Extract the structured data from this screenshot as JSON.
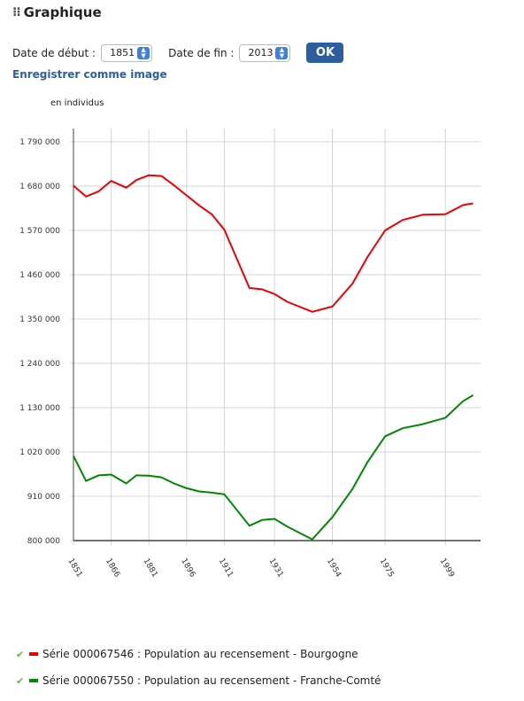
{
  "header": {
    "title": "Graphique",
    "icon": "drag-handle-icon"
  },
  "controls": {
    "start_label": "Date de début :",
    "start_value": "1851",
    "end_label": "Date de fin :",
    "end_value": "2013",
    "ok_label": "OK"
  },
  "save_link": "Enregistrer comme image",
  "chart_data": {
    "type": "line",
    "ylabel": "en individus",
    "ylim": [
      800000,
      1790000
    ],
    "yticks": [
      800000,
      910000,
      1020000,
      1130000,
      1240000,
      1350000,
      1460000,
      1570000,
      1680000,
      1790000
    ],
    "ytick_labels": [
      "800 000",
      "910 000",
      "1 020 000",
      "1 130 000",
      "1 240 000",
      "1 350 000",
      "1 460 000",
      "1 570 000",
      "1 680 000",
      "1 790 000"
    ],
    "xlim": [
      1851,
      2013
    ],
    "xticks": [
      1851,
      1866,
      1881,
      1896,
      1911,
      1931,
      1954,
      1975,
      1999
    ],
    "xtick_labels": [
      "1851",
      "1866",
      "1881",
      "1896",
      "1911",
      "1931",
      "1954",
      "1975",
      "1999"
    ],
    "grid": true,
    "series": [
      {
        "name": "Série 000067546 : Population au recensement - Bourgogne",
        "color": "#ee0000",
        "x": [
          1851,
          1856,
          1861,
          1866,
          1872,
          1876,
          1881,
          1886,
          1891,
          1896,
          1901,
          1906,
          1911,
          1921,
          1926,
          1931,
          1936,
          1946,
          1954,
          1962,
          1968,
          1975,
          1982,
          1990,
          1999,
          2006,
          2010
        ],
        "y": [
          1681000,
          1654000,
          1667000,
          1693000,
          1676000,
          1695000,
          1707000,
          1705000,
          1682000,
          1657000,
          1632000,
          1610000,
          1572000,
          1427000,
          1424000,
          1412000,
          1393000,
          1368000,
          1381000,
          1438000,
          1504000,
          1570000,
          1596000,
          1609000,
          1610000,
          1633000,
          1637000
        ]
      },
      {
        "name": "Série 000067550 : Population au recensement - Franche-Comté",
        "color": "#008800",
        "x": [
          1851,
          1856,
          1861,
          1866,
          1872,
          1876,
          1881,
          1886,
          1891,
          1896,
          1901,
          1906,
          1911,
          1921,
          1926,
          1931,
          1936,
          1946,
          1954,
          1962,
          1968,
          1975,
          1982,
          1990,
          1999,
          2006,
          2010
        ],
        "y": [
          1010000,
          948000,
          962000,
          964000,
          942000,
          962000,
          961000,
          957000,
          942000,
          930000,
          922000,
          919000,
          915000,
          837000,
          851000,
          854000,
          835000,
          803000,
          858000,
          928000,
          995000,
          1059000,
          1079000,
          1089000,
          1105000,
          1146000,
          1161000
        ]
      }
    ]
  }
}
